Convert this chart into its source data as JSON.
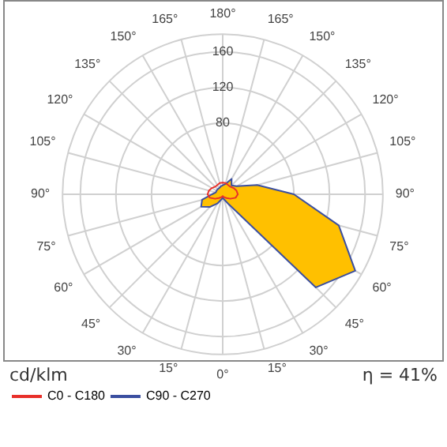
{
  "chart_data": {
    "type": "radar",
    "categories": [
      "180°",
      "165°",
      "150°",
      "135°",
      "120°",
      "105°",
      "90°",
      "75°",
      "60°",
      "45°",
      "30°",
      "15°",
      "0°",
      "15°",
      "30°",
      "45°",
      "60°",
      "75°",
      "90°",
      "105°",
      "120°",
      "135°",
      "150°",
      "165°"
    ],
    "series": [
      {
        "name": "C0 - C180",
        "color": "#e8302a",
        "values": [
          13,
          13,
          12,
          12,
          14,
          16,
          17,
          15,
          10,
          6,
          4,
          3,
          2,
          3,
          4,
          6,
          10,
          15,
          17,
          16,
          14,
          12,
          12,
          13
        ]
      },
      {
        "name": "C90 - C270",
        "type": "area",
        "color": "#3b4fa0",
        "values": [
          10,
          12,
          20,
          14,
          18,
          40,
          80,
          135,
          172,
          148,
          12,
          6,
          4,
          6,
          12,
          20,
          28,
          24,
          12,
          8,
          8,
          8,
          8,
          9
        ]
      }
    ],
    "ylim": [
      0,
      180
    ],
    "yticks": [
      80,
      120,
      160
    ],
    "grid": true,
    "legend": "bottom left",
    "marker": "none",
    "line_style": "solid",
    "annotations": [
      "cd/klm",
      "η = 41%"
    ]
  }
}
